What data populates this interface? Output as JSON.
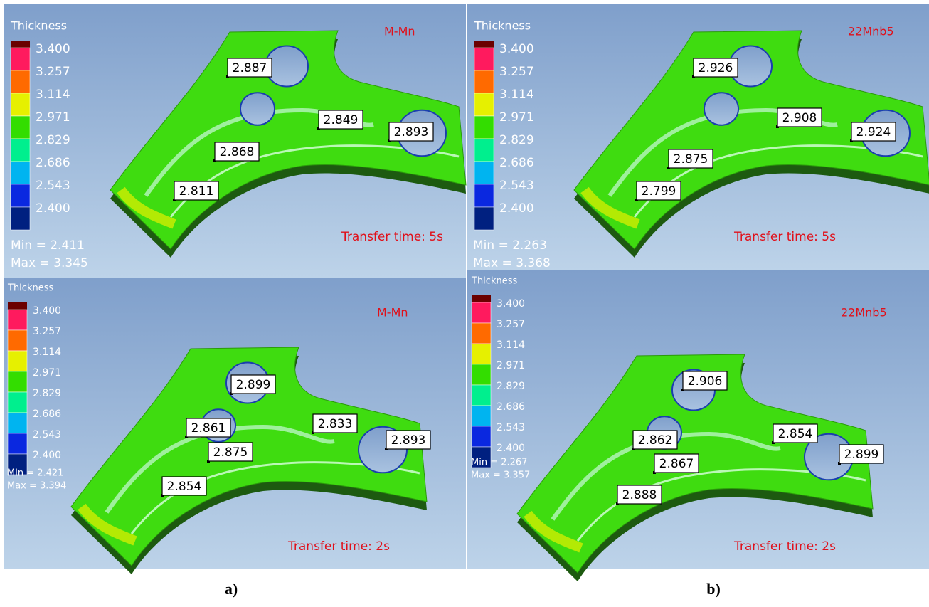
{
  "panels": [
    {
      "legend_title": "Thickness",
      "legend_labels": [
        "3.400",
        "3.257",
        "3.114",
        "2.971",
        "2.829",
        "2.686",
        "2.543",
        "2.400"
      ],
      "material": "M-Mn",
      "min": "Min =  2.411",
      "max": "Max =  3.345",
      "transfer": "Transfer time: 5s",
      "probes": [
        "2.887",
        "2.849",
        "2.893",
        "2.868",
        "2.811"
      ]
    },
    {
      "legend_title": "Thickness",
      "legend_labels": [
        "3.400",
        "3.257",
        "3.114",
        "2.971",
        "2.829",
        "2.686",
        "2.543",
        "2.400"
      ],
      "material": "22Mnb5",
      "min": "Min =  2.263",
      "max": "Max =  3.368",
      "transfer": "Transfer time: 5s",
      "probes": [
        "2.926",
        "2.908",
        "2.924",
        "2.875",
        "2.799"
      ]
    },
    {
      "legend_title": "Thickness",
      "legend_labels": [
        "3.400",
        "3.257",
        "3.114",
        "2.971",
        "2.829",
        "2.686",
        "2.543",
        "2.400"
      ],
      "material": "M-Mn",
      "min": "Min = 2.421",
      "max": "Max = 3.394",
      "transfer": "Transfer time: 2s",
      "probes": [
        "2.899",
        "2.861",
        "2.833",
        "2.893",
        "2.875",
        "2.854"
      ]
    },
    {
      "legend_title": "Thickness",
      "legend_labels": [
        "3.400",
        "3.257",
        "3.114",
        "2.971",
        "2.829",
        "2.686",
        "2.543",
        "2.400"
      ],
      "material": "22Mnb5",
      "min": "Min = 2.267",
      "max": "Max = 3.357",
      "transfer": "Transfer time: 2s",
      "probes": [
        "2.906",
        "2.862",
        "2.854",
        "2.899",
        "2.867",
        "2.888"
      ]
    }
  ],
  "captions": [
    "a)",
    "b)"
  ]
}
